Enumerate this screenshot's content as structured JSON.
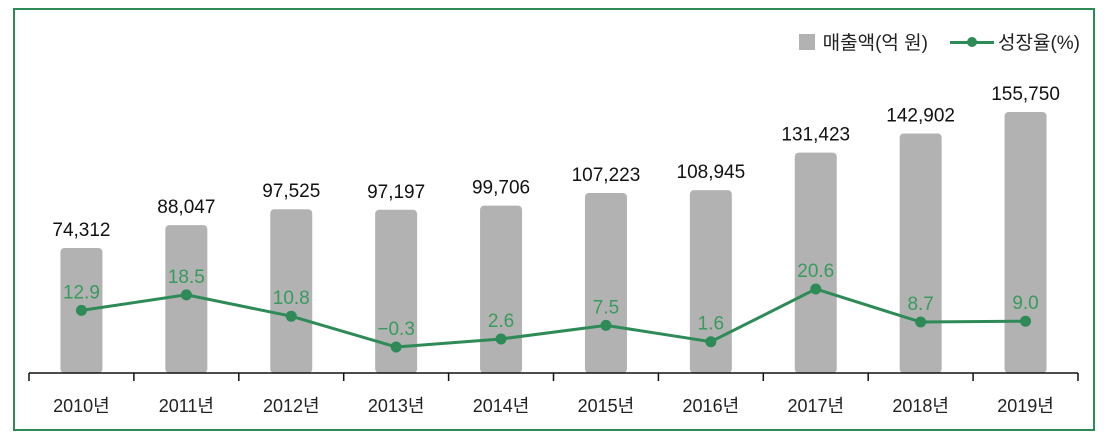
{
  "legend": {
    "bar_label": "매출액(억 원)",
    "line_label": "성장율(%)"
  },
  "colors": {
    "bar": "#b2b2b2",
    "line": "#2e8b57",
    "frame": "#2e8b57",
    "rate_text": "#3a9a5e"
  },
  "chart_data": {
    "type": "bar",
    "title": "",
    "xlabel": "",
    "ylabel": "",
    "categories": [
      "2010년",
      "2011년",
      "2012년",
      "2013년",
      "2014년",
      "2015년",
      "2016년",
      "2017년",
      "2018년",
      "2019년"
    ],
    "series": [
      {
        "name": "매출액(억 원)",
        "type": "bar",
        "values": [
          74312,
          88047,
          97525,
          97197,
          99706,
          107223,
          108945,
          131423,
          142902,
          155750
        ],
        "labels": [
          "74,312",
          "88,047",
          "97,525",
          "97,197",
          "99,706",
          "107,223",
          "108,945",
          "131,423",
          "142,902",
          "155,750"
        ]
      },
      {
        "name": "성장율(%)",
        "type": "line",
        "values": [
          12.9,
          18.5,
          10.8,
          -0.3,
          2.6,
          7.5,
          1.6,
          20.6,
          8.7,
          9.0
        ],
        "labels": [
          "12.9",
          "18.5",
          "10.8",
          "−0.3",
          "2.6",
          "7.5",
          "1.6",
          "20.6",
          "8.7",
          "9.0"
        ]
      }
    ],
    "grid": false,
    "legend_position": "top-right"
  }
}
